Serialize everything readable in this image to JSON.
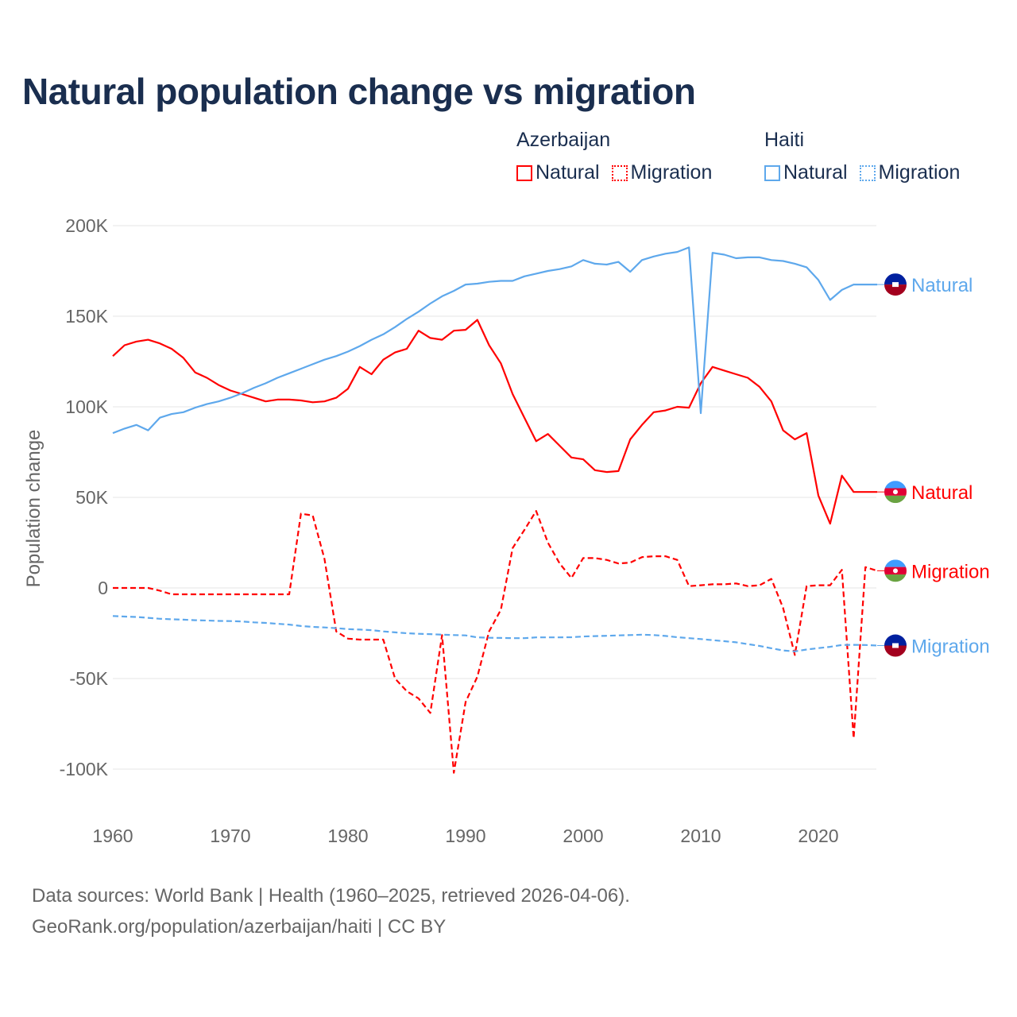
{
  "title": "Natural population change vs migration",
  "legend": {
    "groups": [
      {
        "name": "Azerbaijan",
        "items": [
          {
            "label": "Natural",
            "style": "solid",
            "color": "#ff0000"
          },
          {
            "label": "Migration",
            "style": "dotted",
            "color": "#ff0000"
          }
        ]
      },
      {
        "name": "Haiti",
        "items": [
          {
            "label": "Natural",
            "style": "solid",
            "color": "#5ea8ec"
          },
          {
            "label": "Migration",
            "style": "dotted",
            "color": "#5ea8ec"
          }
        ]
      }
    ]
  },
  "footer": {
    "line1": "Data sources: World Bank | Health (1960–2025, retrieved 2026-04-06).",
    "line2": "GeoRank.org/population/azerbaijan/haiti | CC BY"
  },
  "chart_data": {
    "type": "line",
    "title": "Natural population change vs migration",
    "xlabel": "",
    "ylabel": "Population change",
    "xlim": [
      1960,
      2025
    ],
    "ylim": [
      -100000,
      200000
    ],
    "x_ticks": [
      1960,
      1970,
      1980,
      1990,
      2000,
      2010,
      2020
    ],
    "x_tick_labels": [
      "1960",
      "1970",
      "1980",
      "1990",
      "2000",
      "2010",
      "2020"
    ],
    "y_ticks": [
      200000,
      150000,
      100000,
      50000,
      0,
      -50000,
      -100000
    ],
    "y_tick_labels": [
      "200K",
      "150K",
      "100K",
      "50K",
      "0",
      "-50K",
      "-100K"
    ],
    "grid": true,
    "legend_position": "top-right",
    "x_start": 1960,
    "units": "thousands",
    "series": [
      {
        "name": "Azerbaijan Natural",
        "end_label": "Natural",
        "color": "#ff0000",
        "dash": false,
        "flag": "azerbaijan",
        "values": [
          128,
          134,
          136,
          137,
          135,
          132,
          127,
          119,
          116,
          112,
          109,
          107,
          105,
          103,
          104,
          104,
          103.5,
          102.5,
          103,
          105,
          110,
          122,
          118,
          126,
          130,
          132,
          142,
          138,
          137,
          142,
          142.5,
          148,
          134,
          124,
          107,
          94,
          81,
          85,
          78.5,
          72,
          71,
          65,
          64,
          64.5,
          82,
          90,
          97,
          98,
          100,
          99.5,
          113,
          122,
          120,
          118,
          116,
          111,
          103,
          87,
          82,
          85.5,
          51,
          35.5,
          62,
          53,
          53,
          53
        ]
      },
      {
        "name": "Azerbaijan Migration",
        "end_label": "Migration",
        "color": "#ff0000",
        "dash": true,
        "flag": "azerbaijan",
        "values": [
          0,
          0,
          0,
          0,
          -1.5,
          -3.5,
          -3.5,
          -3.5,
          -3.5,
          -3.5,
          -3.5,
          -3.5,
          -3.5,
          -3.5,
          -3.5,
          -3.5,
          41,
          40,
          16,
          -24,
          -28,
          -28.5,
          -28.5,
          -28.5,
          -50,
          -57,
          -61,
          -69,
          -26,
          -102,
          -63,
          -49,
          -24,
          -12,
          22,
          32,
          42.5,
          25,
          13.5,
          5.5,
          16.5,
          16.5,
          15.5,
          13.5,
          14,
          17,
          17.5,
          17.5,
          15.5,
          1,
          1.5,
          2,
          2,
          2.5,
          1,
          1.5,
          5,
          -11,
          -37,
          1,
          1.5,
          1.5,
          10,
          -83,
          11.5,
          9.5
        ]
      },
      {
        "name": "Haiti Natural",
        "end_label": "Natural",
        "color": "#5ea8ec",
        "dash": false,
        "flag": "haiti",
        "values": [
          85.5,
          88,
          90,
          87,
          94,
          96,
          97,
          99.5,
          101.5,
          103,
          105,
          107.5,
          110.5,
          113,
          116,
          118.5,
          121,
          123.5,
          126,
          128,
          130.5,
          133.5,
          137,
          140,
          144,
          148.5,
          152.5,
          157,
          161,
          164,
          167.5,
          168,
          169,
          169.5,
          169.5,
          172,
          173.5,
          175,
          176,
          177.5,
          181,
          179,
          178.5,
          180,
          174.5,
          181,
          183,
          184.5,
          185.5,
          188,
          96.5,
          185,
          184,
          182,
          182.5,
          182.5,
          181,
          180.5,
          179,
          177,
          170,
          159,
          164.5,
          167.5,
          167.5,
          167.5
        ]
      },
      {
        "name": "Haiti Migration",
        "end_label": "Migration",
        "color": "#5ea8ec",
        "dash": true,
        "flag": "haiti",
        "values": [
          -15.5,
          -15.8,
          -16,
          -16.5,
          -17,
          -17.3,
          -17.5,
          -17.8,
          -18,
          -18.2,
          -18.3,
          -18.5,
          -19,
          -19.3,
          -19.8,
          -20.2,
          -21,
          -21.5,
          -21.8,
          -22.2,
          -22.7,
          -23,
          -23.3,
          -24,
          -24.5,
          -25,
          -25.3,
          -25.5,
          -25.8,
          -26,
          -26.2,
          -27.3,
          -27.5,
          -27.6,
          -27.7,
          -27.7,
          -27.3,
          -27.3,
          -27.3,
          -27.2,
          -26.8,
          -26.6,
          -26.4,
          -26.2,
          -26,
          -25.8,
          -26,
          -26.5,
          -27.2,
          -27.7,
          -28.2,
          -28.8,
          -29.4,
          -30,
          -31,
          -32,
          -33.3,
          -34.5,
          -35,
          -34,
          -33.2,
          -32.5,
          -31.5,
          -31.4,
          -31.5,
          -31.8
        ]
      }
    ]
  }
}
